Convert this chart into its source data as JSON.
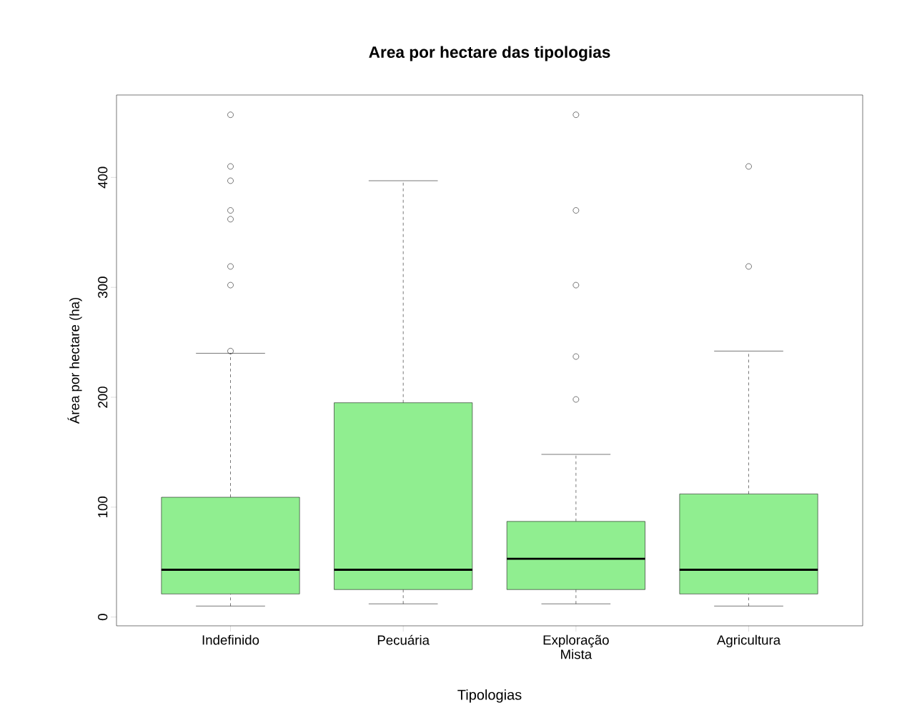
{
  "chart_data": {
    "type": "box",
    "title": "Area por hectare das tipologias",
    "xlabel": "Tipologias",
    "ylabel": "Área por hectare (ha)",
    "categories": [
      "Indefinido",
      "Pecuária",
      "Exploração Mista",
      "Agricultura"
    ],
    "color": "#90ee90",
    "marker": "circle",
    "boxes": [
      {
        "low": 10,
        "q1": 21,
        "median": 43,
        "q3": 109,
        "high": 240,
        "outliers": [
          457,
          410,
          397,
          370,
          362,
          319,
          302,
          242
        ]
      },
      {
        "low": 12,
        "q1": 25,
        "median": 43,
        "q3": 195,
        "high": 397
      },
      {
        "low": 12,
        "q1": 25,
        "median": 53,
        "q3": 87,
        "high": 148,
        "outliers": [
          457,
          370,
          302,
          237,
          198
        ]
      },
      {
        "low": 10,
        "q1": 21,
        "median": 43,
        "q3": 112,
        "high": 242,
        "outliers": [
          410,
          319
        ]
      }
    ],
    "ylim": [
      -8,
      475
    ],
    "yticks": [
      0,
      100,
      200,
      300,
      400
    ]
  }
}
